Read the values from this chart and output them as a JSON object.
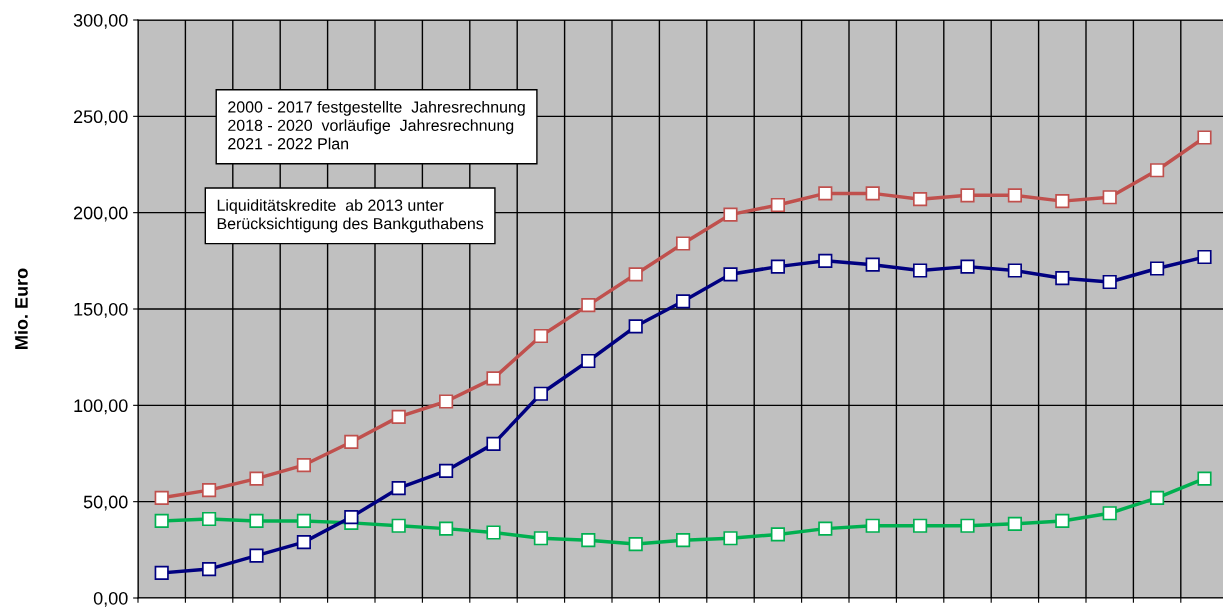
{
  "chart_data": {
    "type": "line",
    "ylabel": "Mio. Euro",
    "categories": [
      null,
      null,
      null,
      null,
      null,
      null,
      null,
      null,
      null,
      null,
      null,
      null,
      null,
      null,
      null,
      null,
      null,
      null,
      null,
      null,
      null,
      null,
      null
    ],
    "series": [
      {
        "color": "#c0504d",
        "values": [
          52,
          56,
          62,
          69,
          81,
          94,
          102,
          114,
          136,
          152,
          168,
          184,
          199,
          204,
          210,
          210,
          207,
          209,
          209,
          206,
          208,
          222,
          239
        ]
      },
      {
        "color": "#000080",
        "values": [
          13,
          15,
          22,
          29,
          42,
          57,
          66,
          80,
          106,
          123,
          141,
          154,
          168,
          172,
          175,
          173,
          170,
          172,
          170,
          166,
          164,
          171,
          177
        ]
      },
      {
        "color": "#00b050",
        "values": [
          40,
          41,
          40,
          40,
          39,
          37.5,
          36,
          34,
          31,
          30,
          28,
          30,
          31,
          33,
          36,
          37.5,
          37.5,
          37.5,
          38.5,
          40,
          44,
          52,
          62
        ]
      }
    ],
    "ylim": [
      0,
      300
    ],
    "yticks": [
      {
        "value": 0,
        "label": "0,00"
      },
      {
        "value": 50,
        "label": "50,00"
      },
      {
        "value": 100,
        "label": "100,00"
      },
      {
        "value": 150,
        "label": "150,00"
      },
      {
        "value": 200,
        "label": "200,00"
      },
      {
        "value": 250,
        "label": "250,00"
      },
      {
        "value": 300,
        "label": "300,00"
      }
    ],
    "tick_labels": "y",
    "grid": true,
    "marker": "square",
    "line_style": "solid",
    "annotations": [
      "2000 - 2017 festgestellte  Jahresrechnung\n2018 - 2020  vorläufige  Jahresrechnung\n2021 - 2022 Plan",
      "Liquiditätskredite  ab 2013 unter\nBerücksichtigung des Bankguthabens"
    ]
  }
}
